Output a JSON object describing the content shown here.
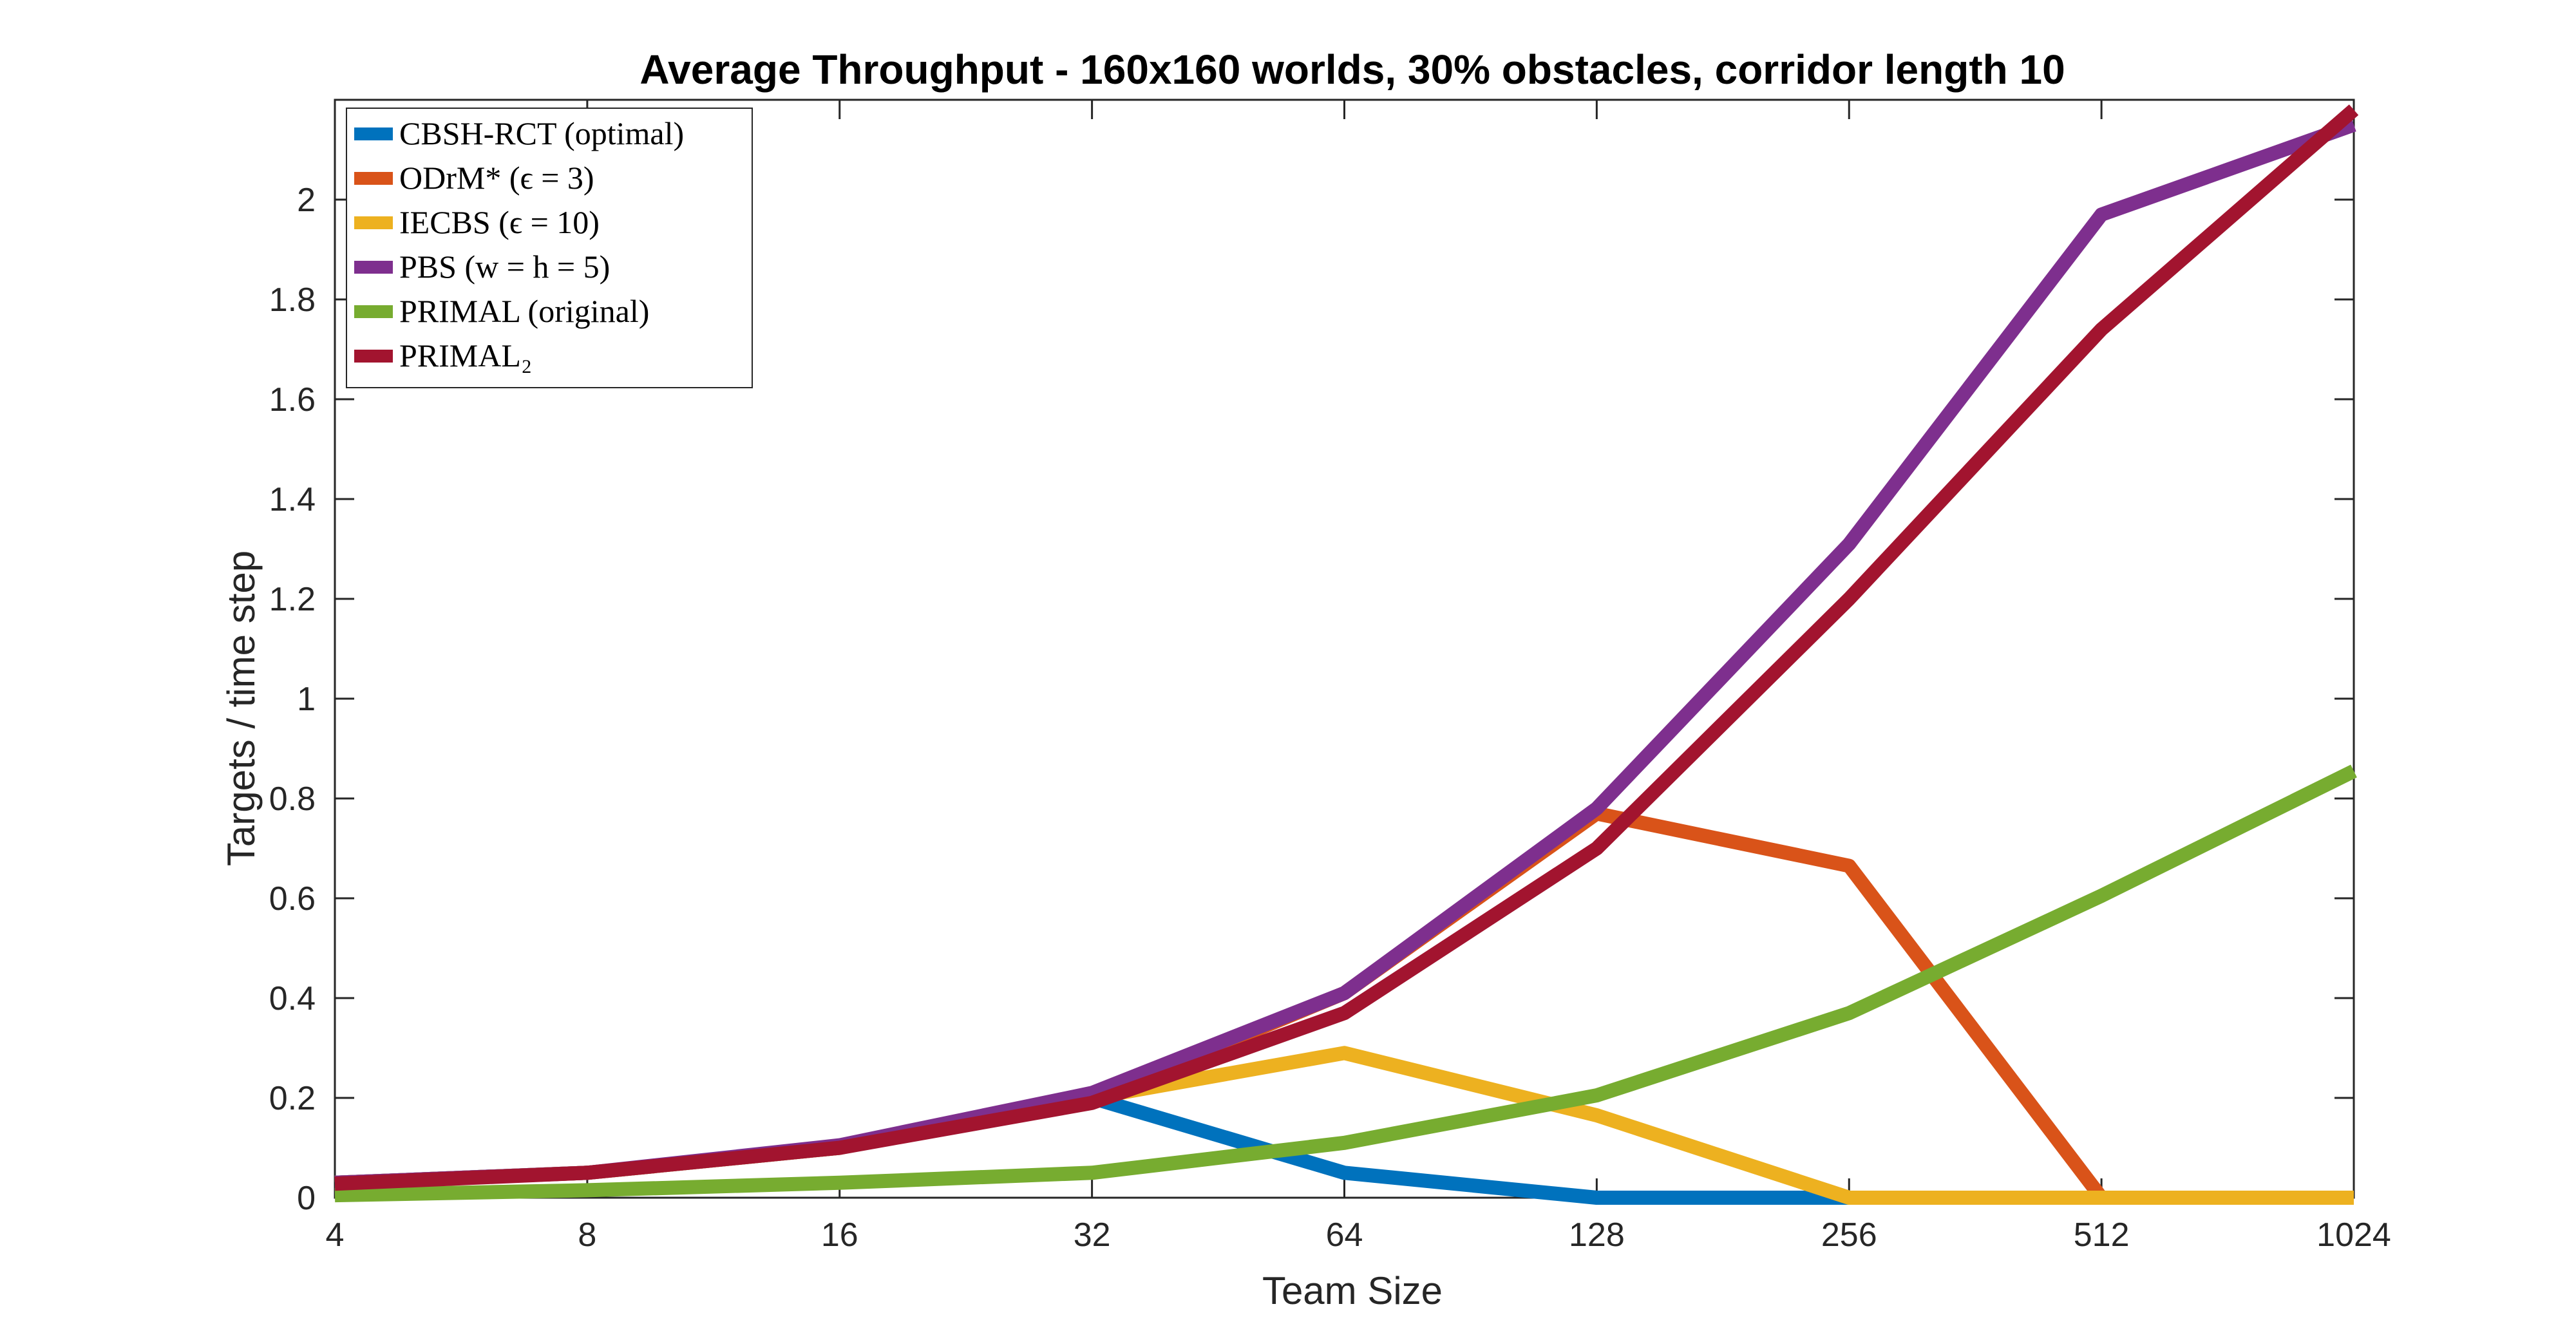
{
  "chart_data": {
    "type": "line",
    "title": "Average Throughput - 160x160 worlds, 30% obstacles, corridor length 10",
    "xlabel": "Team Size",
    "ylabel": "Targets / time step",
    "x_scale": "log2",
    "categories": [
      "4",
      "8",
      "16",
      "32",
      "64",
      "128",
      "256",
      "512",
      "1024"
    ],
    "x": [
      4,
      8,
      16,
      32,
      64,
      128,
      256,
      512,
      1024
    ],
    "ylim": [
      0,
      2.2
    ],
    "yticks": [
      0,
      0.2,
      0.4,
      0.6,
      0.8,
      1,
      1.2,
      1.4,
      1.6,
      1.8,
      2
    ],
    "ytick_labels": [
      "0",
      "0.2",
      "0.4",
      "0.6",
      "0.8",
      "1",
      "1.2",
      "1.4",
      "1.6",
      "1.8",
      "2"
    ],
    "grid": false,
    "legend_position": "top-left",
    "series": [
      {
        "name": "CBSH-RCT (optimal)",
        "color": "#0072BD",
        "values": [
          0.03,
          0.05,
          0.1,
          0.2,
          0.05,
          0.0,
          0.0,
          null,
          null
        ]
      },
      {
        "name": "ODrM* (ϵ = 3)",
        "color": "#D95319",
        "values": [
          0.03,
          0.05,
          0.1,
          0.2,
          0.41,
          0.77,
          0.665,
          0.0,
          0.0
        ]
      },
      {
        "name": "IECBS (ϵ = 10)",
        "color": "#EDB120",
        "values": [
          0.03,
          0.05,
          0.1,
          0.2,
          0.29,
          0.165,
          0.0,
          0.0,
          0.0
        ]
      },
      {
        "name": "PBS (w = h = 5)",
        "color": "#7E2F8E",
        "values": [
          0.03,
          0.05,
          0.105,
          0.21,
          0.41,
          0.78,
          1.31,
          1.97,
          2.15
        ]
      },
      {
        "name": "PRIMAL (original)",
        "color": "#77AC30",
        "values": [
          0.005,
          0.015,
          0.03,
          0.05,
          0.11,
          0.205,
          0.37,
          0.605,
          0.855
        ]
      },
      {
        "name": "PRIMAL₂",
        "color": "#A2142F",
        "values": [
          0.028,
          0.05,
          0.1,
          0.19,
          0.37,
          0.7,
          1.2,
          1.74,
          2.18
        ]
      }
    ]
  }
}
